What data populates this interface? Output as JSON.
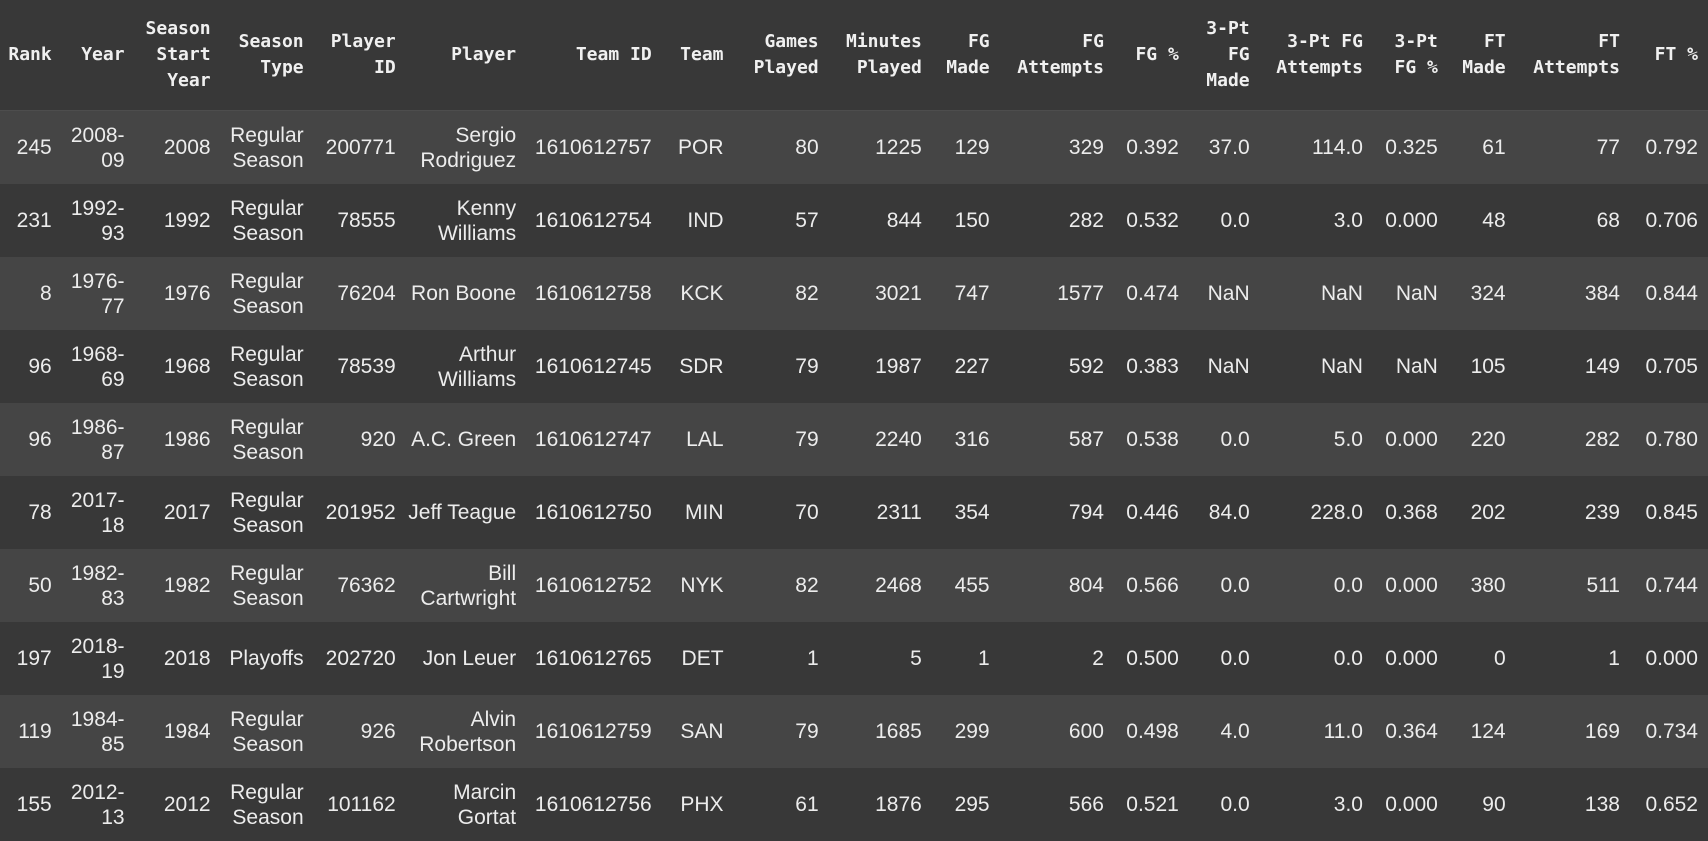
{
  "columns": [
    "Rank",
    "Year",
    "Season Start Year",
    "Season Type",
    "Player ID",
    "Player",
    "Team ID",
    "Team",
    "Games Played",
    "Minutes Played",
    "FG Made",
    "FG Attempts",
    "FG %",
    "3-Pt FG Made",
    "3-Pt FG Attempts",
    "3-Pt FG %",
    "FT Made",
    "FT Attempts",
    "FT %"
  ],
  "rows": [
    [
      "245",
      "2008-09",
      "2008",
      "Regular Season",
      "200771",
      "Sergio Rodriguez",
      "1610612757",
      "POR",
      "80",
      "1225",
      "129",
      "329",
      "0.392",
      "37.0",
      "114.0",
      "0.325",
      "61",
      "77",
      "0.792"
    ],
    [
      "231",
      "1992-93",
      "1992",
      "Regular Season",
      "78555",
      "Kenny Williams",
      "1610612754",
      "IND",
      "57",
      "844",
      "150",
      "282",
      "0.532",
      "0.0",
      "3.0",
      "0.000",
      "48",
      "68",
      "0.706"
    ],
    [
      "8",
      "1976-77",
      "1976",
      "Regular Season",
      "76204",
      "Ron Boone",
      "1610612758",
      "KCK",
      "82",
      "3021",
      "747",
      "1577",
      "0.474",
      "NaN",
      "NaN",
      "NaN",
      "324",
      "384",
      "0.844"
    ],
    [
      "96",
      "1968-69",
      "1968",
      "Regular Season",
      "78539",
      "Arthur Williams",
      "1610612745",
      "SDR",
      "79",
      "1987",
      "227",
      "592",
      "0.383",
      "NaN",
      "NaN",
      "NaN",
      "105",
      "149",
      "0.705"
    ],
    [
      "96",
      "1986-87",
      "1986",
      "Regular Season",
      "920",
      "A.C. Green",
      "1610612747",
      "LAL",
      "79",
      "2240",
      "316",
      "587",
      "0.538",
      "0.0",
      "5.0",
      "0.000",
      "220",
      "282",
      "0.780"
    ],
    [
      "78",
      "2017-18",
      "2017",
      "Regular Season",
      "201952",
      "Jeff Teague",
      "1610612750",
      "MIN",
      "70",
      "2311",
      "354",
      "794",
      "0.446",
      "84.0",
      "228.0",
      "0.368",
      "202",
      "239",
      "0.845"
    ],
    [
      "50",
      "1982-83",
      "1982",
      "Regular Season",
      "76362",
      "Bill Cartwright",
      "1610612752",
      "NYK",
      "82",
      "2468",
      "455",
      "804",
      "0.566",
      "0.0",
      "0.0",
      "0.000",
      "380",
      "511",
      "0.744"
    ],
    [
      "197",
      "2018-19",
      "2018",
      "Playoffs",
      "202720",
      "Jon Leuer",
      "1610612765",
      "DET",
      "1",
      "5",
      "1",
      "2",
      "0.500",
      "0.0",
      "0.0",
      "0.000",
      "0",
      "1",
      "0.000"
    ],
    [
      "119",
      "1984-85",
      "1984",
      "Regular Season",
      "926",
      "Alvin Robertson",
      "1610612759",
      "SAN",
      "79",
      "1685",
      "299",
      "600",
      "0.498",
      "4.0",
      "11.0",
      "0.364",
      "124",
      "169",
      "0.734"
    ],
    [
      "155",
      "2012-13",
      "2012",
      "Regular Season",
      "101162",
      "Marcin Gortat",
      "1610612756",
      "PHX",
      "61",
      "1876",
      "295",
      "566",
      "0.521",
      "0.0",
      "3.0",
      "0.000",
      "90",
      "138",
      "0.652"
    ]
  ]
}
